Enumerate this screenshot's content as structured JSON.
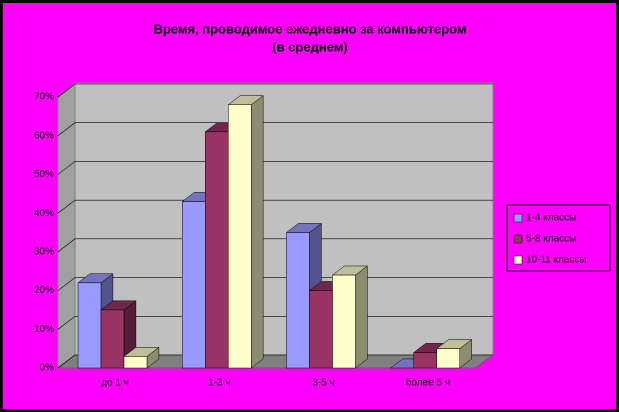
{
  "chart_data": {
    "type": "bar3d",
    "title": [
      "Время, проводимое ежедневно за компьютером",
      "(в среднем)"
    ],
    "categories": [
      "до 1 ч",
      "1-3 ч",
      "3-5 ч",
      "более 5 ч"
    ],
    "series": [
      {
        "name": "1-4 классы",
        "color": "#9999ff",
        "values": [
          22,
          43,
          35,
          0
        ]
      },
      {
        "name": "5-8 классы",
        "color": "#993366",
        "values": [
          15,
          61,
          20,
          4
        ]
      },
      {
        "name": "10-11 классы",
        "color": "#ffffcc",
        "values": [
          3,
          68,
          24,
          5
        ]
      }
    ],
    "ylim": [
      0,
      70
    ],
    "yticks": [
      {
        "value": 0,
        "label": "0%"
      },
      {
        "value": 10,
        "label": "10%"
      },
      {
        "value": 20,
        "label": "20%"
      },
      {
        "value": 30,
        "label": "30%"
      },
      {
        "value": 40,
        "label": "40%"
      },
      {
        "value": 50,
        "label": "50%"
      },
      {
        "value": 60,
        "label": "60%"
      },
      {
        "value": 70,
        "label": "70%"
      }
    ],
    "grid": true,
    "legend": "right"
  }
}
